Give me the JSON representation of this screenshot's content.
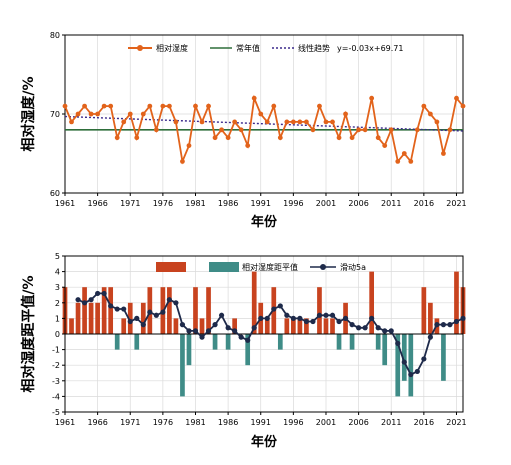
{
  "colors": {
    "humidity": "#E2631B",
    "normal": "#2E6E3A",
    "trend": "#3B2A8C",
    "pos_bar": "#C8431F",
    "neg_bar": "#3F8C87",
    "moving": "#1E2A4A",
    "grid": "#DADADA"
  },
  "chart_data": [
    {
      "type": "line",
      "xlabel": "年份",
      "ylabel": "相对湿度/%",
      "ylim": [
        60,
        80
      ],
      "yticks": [
        "60",
        "70",
        "80"
      ],
      "xlim": [
        1961,
        2022
      ],
      "xticks": [
        "1961",
        "1966",
        "1971",
        "1976",
        "1981",
        "1986",
        "1991",
        "1996",
        "2001",
        "2006",
        "2011",
        "2016",
        "2021"
      ],
      "grid": true,
      "legend": {
        "placement": "top",
        "humidity_label": "相对湿度",
        "normal_label": "常年值",
        "trend_label": "线性趋势"
      },
      "trend_equation": "y=-0.03x+69.71",
      "x": [
        1961,
        1962,
        1963,
        1964,
        1965,
        1966,
        1967,
        1968,
        1969,
        1970,
        1971,
        1972,
        1973,
        1974,
        1975,
        1976,
        1977,
        1978,
        1979,
        1980,
        1981,
        1982,
        1983,
        1984,
        1985,
        1986,
        1987,
        1988,
        1989,
        1990,
        1991,
        1992,
        1993,
        1994,
        1995,
        1996,
        1997,
        1998,
        1999,
        2000,
        2001,
        2002,
        2003,
        2004,
        2005,
        2006,
        2007,
        2008,
        2009,
        2010,
        2011,
        2012,
        2013,
        2014,
        2015,
        2016,
        2017,
        2018,
        2019,
        2020,
        2021,
        2022
      ],
      "series": [
        {
          "values": [
            71,
            69,
            70,
            71,
            70,
            70,
            71,
            71,
            67,
            69,
            70,
            67,
            70,
            71,
            68,
            71,
            71,
            69,
            64,
            66,
            71,
            69,
            71,
            67,
            68,
            67,
            69,
            68,
            66,
            72,
            70,
            69,
            71,
            67,
            69,
            69,
            69,
            69,
            68,
            71,
            69,
            69,
            67,
            70,
            67,
            68,
            68,
            72,
            67,
            66,
            68,
            64,
            65,
            64,
            68,
            71,
            70,
            69,
            65,
            68,
            72,
            71
          ]
        }
      ],
      "normal_value": 68,
      "trend": {
        "slope": -0.03,
        "intercept": 69.71
      }
    },
    {
      "type": "bar",
      "xlabel": "年份",
      "ylabel": "相对湿度距平值/%",
      "ylim": [
        -5,
        5
      ],
      "yticks": [
        "-5",
        "-4",
        "-3",
        "-2",
        "-1",
        "0",
        "1",
        "2",
        "3",
        "4",
        "5"
      ],
      "xlim": [
        1961,
        2022
      ],
      "xticks": [
        "1961",
        "1966",
        "1971",
        "1976",
        "1981",
        "1986",
        "1991",
        "1996",
        "2001",
        "2006",
        "2011",
        "2016",
        "2021"
      ],
      "grid": true,
      "legend": {
        "placement": "top",
        "bar_label": "相对湿度距平值",
        "moving_label": "滑动5a"
      },
      "x": [
        1961,
        1962,
        1963,
        1964,
        1965,
        1966,
        1967,
        1968,
        1969,
        1970,
        1971,
        1972,
        1973,
        1974,
        1975,
        1976,
        1977,
        1978,
        1979,
        1980,
        1981,
        1982,
        1983,
        1984,
        1985,
        1986,
        1987,
        1988,
        1989,
        1990,
        1991,
        1992,
        1993,
        1994,
        1995,
        1996,
        1997,
        1998,
        1999,
        2000,
        2001,
        2002,
        2003,
        2004,
        2005,
        2006,
        2007,
        2008,
        2009,
        2010,
        2011,
        2012,
        2013,
        2014,
        2015,
        2016,
        2017,
        2018,
        2019,
        2020,
        2021,
        2022
      ],
      "series": [
        {
          "values": [
            3,
            1,
            2,
            3,
            2,
            2,
            3,
            3,
            -1,
            1,
            2,
            -1,
            2,
            3,
            0,
            3,
            3,
            1,
            -4,
            -2,
            3,
            1,
            3,
            -1,
            0,
            -1,
            1,
            0,
            -2,
            4,
            2,
            1,
            3,
            -1,
            1,
            1,
            1,
            1,
            0,
            3,
            1,
            1,
            -1,
            2,
            -1,
            0,
            0,
            4,
            -1,
            -2,
            0,
            -4,
            -3,
            -4,
            0,
            3,
            2,
            1,
            -3,
            0,
            4,
            3
          ]
        },
        {
          "x": [
            1963,
            1964,
            1965,
            1966,
            1967,
            1968,
            1969,
            1970,
            1971,
            1972,
            1973,
            1974,
            1975,
            1976,
            1977,
            1978,
            1979,
            1980,
            1981,
            1982,
            1983,
            1984,
            1985,
            1986,
            1987,
            1988,
            1989,
            1990,
            1991,
            1992,
            1993,
            1994,
            1995,
            1996,
            1997,
            1998,
            1999,
            2000,
            2001,
            2002,
            2003,
            2004,
            2005,
            2006,
            2007,
            2008,
            2009,
            2010,
            2011,
            2012,
            2013,
            2014,
            2015,
            2016,
            2017,
            2018,
            2019,
            2020,
            2021,
            2022
          ],
          "values": [
            2.2,
            2.0,
            2.2,
            2.6,
            2.6,
            1.8,
            1.6,
            1.6,
            0.8,
            1.0,
            0.6,
            1.4,
            1.2,
            1.4,
            2.2,
            2.0,
            0.6,
            0.2,
            0.2,
            -0.2,
            0.2,
            0.6,
            1.2,
            0.4,
            0.2,
            -0.2,
            -0.4,
            0.4,
            1.0,
            1.0,
            1.6,
            1.8,
            1.2,
            1.0,
            1.0,
            0.8,
            0.8,
            1.2,
            1.2,
            1.2,
            0.8,
            1.0,
            0.6,
            0.4,
            0.4,
            1.0,
            0.4,
            0.2,
            0.2,
            -0.6,
            -1.8,
            -2.6,
            -2.4,
            -1.6,
            -0.2,
            0.6,
            0.6,
            0.6,
            0.8,
            1.0
          ]
        }
      ]
    }
  ]
}
